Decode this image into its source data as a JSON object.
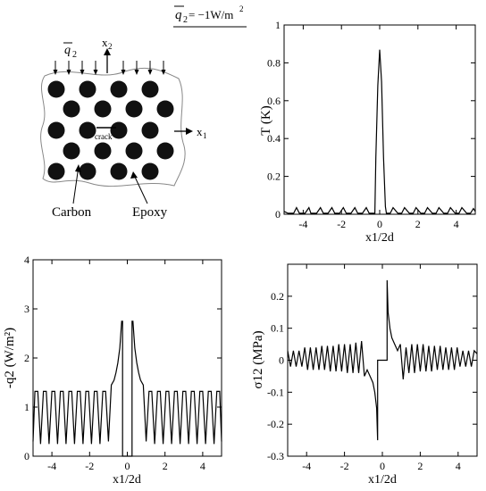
{
  "header": {
    "load_label": "q̄₂ = −1W/m²",
    "load_main": "q",
    "load_sub": "2",
    "load_eq": " = −1W/m",
    "load_sup": "2"
  },
  "schematic": {
    "flux_label": "q",
    "flux_sub": "2",
    "axis_x": "x",
    "axis_x_sub": "1",
    "axis_y": "x",
    "axis_y_sub": "2",
    "crack_label": "crack",
    "carbon_label": "Carbon",
    "epoxy_label": "Epoxy"
  },
  "chart_data": [
    {
      "id": "T",
      "type": "line",
      "ylabel": "T (K)",
      "xlabel": "x1/2d",
      "xlim": [
        -5,
        5
      ],
      "ylim": [
        0,
        1
      ],
      "xticks": [
        -4,
        -2,
        0,
        2,
        4
      ],
      "xtick_labels": [
        "-4",
        "-2",
        "0",
        "2",
        "4"
      ],
      "yticks": [
        0,
        0.2,
        0.4,
        0.6,
        0.8,
        1
      ],
      "ytick_labels": [
        "0",
        "0.2",
        "0.4",
        "0.6",
        "0.8",
        "1"
      ],
      "series": [
        {
          "x": [
            -5,
            -4.8,
            -4.5,
            -4.35,
            -4.2,
            -3.9,
            -3.7,
            -3.6,
            -3.3,
            -3.1,
            -2.95,
            -2.7,
            -2.5,
            -2.35,
            -2.1,
            -1.9,
            -1.75,
            -1.5,
            -1.3,
            -1.15,
            -0.9,
            -0.7,
            -0.55,
            -0.25,
            -0.2,
            -0.1,
            0,
            0.1,
            0.2,
            0.3,
            0.35,
            0.55,
            0.7,
            0.95,
            1.15,
            1.3,
            1.55,
            1.75,
            1.9,
            2.15,
            2.35,
            2.5,
            2.75,
            2.95,
            3.1,
            3.35,
            3.55,
            3.7,
            3.95,
            4.15,
            4.3,
            4.55,
            4.75,
            4.9,
            5
          ],
          "y": [
            0.015,
            0.005,
            0.005,
            0.035,
            0.005,
            0.005,
            0.035,
            0.005,
            0.005,
            0.035,
            0.005,
            0.005,
            0.035,
            0.005,
            0.005,
            0.035,
            0.005,
            0.005,
            0.035,
            0.005,
            0.005,
            0.035,
            0.005,
            0.005,
            0.3,
            0.68,
            0.87,
            0.7,
            0.3,
            0.04,
            0.005,
            0.005,
            0.035,
            0.005,
            0.005,
            0.035,
            0.005,
            0.005,
            0.035,
            0.005,
            0.005,
            0.035,
            0.005,
            0.005,
            0.035,
            0.005,
            0.005,
            0.035,
            0.005,
            0.005,
            0.035,
            0.005,
            0.005,
            0.03,
            0.015
          ]
        }
      ]
    },
    {
      "id": "q2",
      "type": "line",
      "ylabel": "-q2 (W/m²)",
      "xlabel": "x1/2d",
      "xlim": [
        -5,
        5
      ],
      "ylim": [
        0,
        4
      ],
      "xticks": [
        -4,
        -2,
        0,
        2,
        4
      ],
      "xtick_labels": [
        "-4",
        "-2",
        "0",
        "2",
        "4"
      ],
      "yticks": [
        0,
        1,
        2,
        3,
        4
      ],
      "ytick_labels": [
        "0",
        "1",
        "2",
        "3",
        "4"
      ],
      "series": [
        {
          "x": [
            -5,
            -4.9,
            -4.75,
            -4.6,
            -4.45,
            -4.3,
            -4.15,
            -4,
            -3.85,
            -3.7,
            -3.55,
            -3.4,
            -3.25,
            -3.1,
            -2.95,
            -2.8,
            -2.65,
            -2.5,
            -2.35,
            -2.2,
            -2.05,
            -1.9,
            -1.75,
            -1.6,
            -1.45,
            -1.3,
            -1.15,
            -1,
            -0.85,
            -0.7,
            -0.6,
            -0.5,
            -0.4,
            -0.3,
            -0.25,
            -0.25,
            -0.1,
            0,
            0.1,
            0.25,
            0.25,
            0.3,
            0.4,
            0.5,
            0.6,
            0.7,
            0.85,
            1,
            1.15,
            1.3,
            1.45,
            1.6,
            1.75,
            1.9,
            2.05,
            2.2,
            2.35,
            2.5,
            2.65,
            2.8,
            2.95,
            3.1,
            3.25,
            3.4,
            3.55,
            3.7,
            3.85,
            4,
            4.15,
            4.3,
            4.45,
            4.6,
            4.75,
            4.9,
            5
          ],
          "y": [
            0.3,
            1.32,
            1.32,
            0.25,
            1.32,
            1.32,
            0.25,
            1.32,
            1.32,
            0.25,
            1.32,
            1.32,
            0.25,
            1.32,
            1.32,
            0.25,
            1.32,
            1.32,
            0.25,
            1.32,
            1.32,
            0.25,
            1.32,
            1.32,
            0.25,
            1.32,
            1.32,
            0.3,
            1.45,
            1.55,
            1.7,
            1.9,
            2.2,
            2.75,
            2.75,
            0,
            0,
            0,
            0,
            0,
            2.75,
            2.75,
            2.2,
            1.9,
            1.7,
            1.55,
            1.45,
            0.3,
            1.32,
            1.32,
            0.25,
            1.32,
            1.32,
            0.25,
            1.32,
            1.32,
            0.25,
            1.32,
            1.32,
            0.25,
            1.32,
            1.32,
            0.25,
            1.32,
            1.32,
            0.25,
            1.32,
            1.32,
            0.25,
            1.32,
            1.32,
            0.25,
            1.32,
            1.32,
            0.3
          ]
        }
      ]
    },
    {
      "id": "sigma12",
      "type": "line",
      "ylabel": "σ12 (MPa)",
      "xlabel": "x1/2d",
      "xlim": [
        -5,
        5
      ],
      "ylim": [
        -0.3,
        0.3
      ],
      "xticks": [
        -4,
        -2,
        0,
        2,
        4
      ],
      "xtick_labels": [
        "-4",
        "-2",
        "0",
        "2",
        "4"
      ],
      "yticks": [
        -0.3,
        -0.2,
        -0.1,
        0,
        0.1,
        0.2
      ],
      "ytick_labels": [
        "-0.3",
        "-0.2",
        "-0.1",
        "0",
        "0.1",
        "0.2"
      ],
      "series": [
        {
          "x": [
            -5,
            -4.85,
            -4.7,
            -4.55,
            -4.4,
            -4.25,
            -4.1,
            -3.95,
            -3.8,
            -3.65,
            -3.5,
            -3.35,
            -3.2,
            -3.05,
            -2.9,
            -2.75,
            -2.6,
            -2.45,
            -2.3,
            -2.15,
            -2,
            -1.85,
            -1.7,
            -1.55,
            -1.4,
            -1.25,
            -1.1,
            -0.95,
            -0.8,
            -0.65,
            -0.5,
            -0.4,
            -0.3,
            -0.25,
            -0.25,
            0,
            0.25,
            0.25,
            0.3,
            0.4,
            0.5,
            0.65,
            0.8,
            0.95,
            1.1,
            1.25,
            1.4,
            1.55,
            1.7,
            1.85,
            2,
            2.15,
            2.3,
            2.45,
            2.6,
            2.75,
            2.9,
            3.05,
            3.2,
            3.35,
            3.5,
            3.65,
            3.8,
            3.95,
            4.1,
            4.25,
            4.4,
            4.55,
            4.7,
            4.85,
            5
          ],
          "y": [
            0.03,
            -0.02,
            0.03,
            -0.02,
            0.03,
            -0.02,
            0.04,
            -0.03,
            0.04,
            -0.03,
            0.04,
            -0.03,
            0.045,
            -0.03,
            0.045,
            -0.035,
            0.045,
            -0.035,
            0.05,
            -0.035,
            0.05,
            -0.04,
            0.05,
            -0.04,
            0.055,
            -0.04,
            0.06,
            -0.05,
            -0.03,
            -0.05,
            -0.07,
            -0.1,
            -0.15,
            -0.25,
            0,
            0,
            0,
            0.25,
            0.15,
            0.1,
            0.07,
            0.05,
            0.03,
            0.05,
            -0.06,
            0.04,
            -0.04,
            0.05,
            -0.04,
            0.05,
            -0.035,
            0.05,
            -0.035,
            0.045,
            -0.035,
            0.045,
            -0.03,
            0.045,
            -0.03,
            0.04,
            -0.03,
            0.04,
            -0.03,
            0.04,
            -0.02,
            0.03,
            -0.02,
            0.03,
            -0.02,
            0.03,
            0.02
          ]
        }
      ]
    }
  ]
}
